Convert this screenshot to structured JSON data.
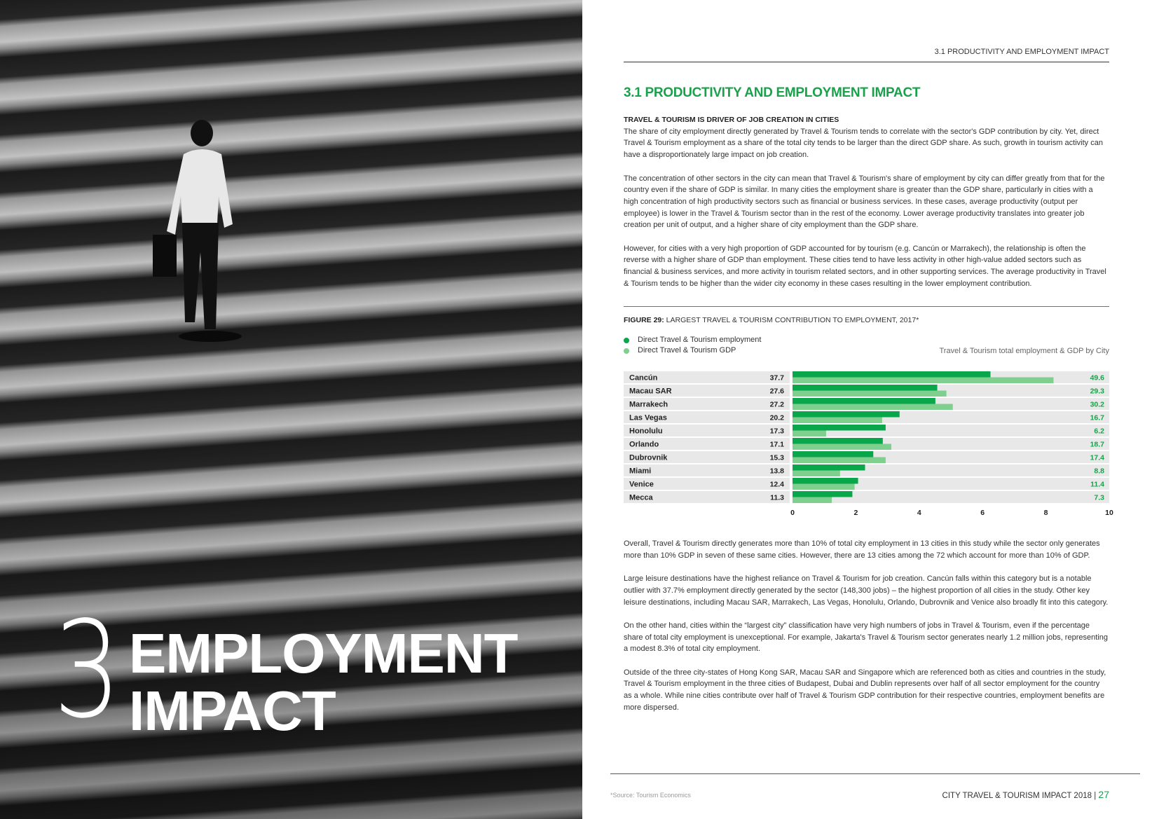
{
  "left_page": {
    "chapter_number": "3",
    "chapter_title_line1": "EMPLOYMENT",
    "chapter_title_line2": "IMPACT"
  },
  "header": {
    "running_head": "3.1 PRODUCTIVITY AND EMPLOYMENT IMPACT"
  },
  "section": {
    "title": "3.1 PRODUCTIVITY AND EMPLOYMENT IMPACT",
    "subheading": "TRAVEL & TOURISM IS DRIVER OF JOB CREATION IN CITIES",
    "paragraphs_top": [
      "The share of city employment directly generated by Travel & Tourism tends to correlate with the sector's GDP contribution by city. Yet, direct Travel & Tourism employment as a share of the total city tends to be larger than the direct GDP share. As such, growth in tourism activity can have a disproportionately large impact on job creation.",
      "The concentration of other sectors in the city can mean that Travel & Tourism's share of employment by city can differ greatly from that for the country even if the share of GDP is similar. In many cities the employment share is greater than the GDP share, particularly in cities with a high concentration of high productivity sectors such as financial or business services. In these cases, average productivity (output per employee) is lower in the Travel & Tourism sector than in the rest of the economy. Lower average productivity translates into greater job creation per unit of output, and a higher share of city employment than the GDP share.",
      "However, for cities with a very high proportion of GDP accounted for by tourism (e.g. Cancún or Marrakech), the relationship is often the reverse with a higher share of GDP than employment. These cities tend to have less activity in other high-value added sectors such as financial & business services, and more activity in tourism related sectors, and in other supporting services. The average productivity in Travel & Tourism tends to be higher than the wider city economy in these cases resulting in the lower employment contribution."
    ],
    "paragraphs_bottom": [
      "Overall, Travel & Tourism directly generates more than 10% of total city employment in 13 cities in this study while the sector only generates more than 10% GDP in seven of these same cities. However, there are 13 cities among the 72 which account for more than 10% of GDP.",
      "Large leisure destinations have the highest reliance on Travel & Tourism for job creation. Cancún falls within this category but is a notable outlier with 37.7% employment directly generated by the sector (148,300 jobs) – the highest proportion of all cities in the study. Other key leisure destinations, including Macau SAR, Marrakech, Las Vegas, Honolulu, Orlando, Dubrovnik and Venice also broadly fit into this category.",
      "On the other hand, cities within the “largest city” classification have very high numbers of jobs in Travel & Tourism, even if the percentage share of total city employment is unexceptional. For example, Jakarta's Travel & Tourism sector generates nearly 1.2 million jobs, representing a modest 8.3% of total city employment.",
      "Outside of the three city-states of Hong Kong SAR, Macau SAR and Singapore which are referenced both as cities and countries in the study, Travel & Tourism employment in the three cities of Budapest, Dubai and Dublin represents over half of all sector employment for the country as a whole.  While nine cities contribute over half of Travel & Tourism GDP contribution for their respective countries, employment benefits are more dispersed."
    ]
  },
  "figure": {
    "label": "FIGURE 29:",
    "title": " LARGEST TRAVEL & TOURISM CONTRIBUTION TO EMPLOYMENT, 2017*"
  },
  "chart_data": {
    "type": "bar",
    "orientation": "horizontal",
    "title": "Travel & Tourism total employment & GDP by City",
    "legend_placement": "top-left",
    "categories": [
      "Cancún",
      "Macau SAR",
      "Marrakech",
      "Las Vegas",
      "Honolulu",
      "Orlando",
      "Dubrovnik",
      "Miami",
      "Venice",
      "Mecca"
    ],
    "left_labels": [
      "37.7",
      "27.6",
      "27.2",
      "20.2",
      "17.3",
      "17.1",
      "15.3",
      "13.8",
      "12.4",
      "11.3"
    ],
    "right_labels": [
      "49.6",
      "29.3",
      "30.2",
      "16.7",
      "6.2",
      "18.7",
      "17.4",
      "8.8",
      "11.4",
      "7.3"
    ],
    "series": [
      {
        "name": "Direct Travel & Tourism employment",
        "color": "#0aa64b",
        "values": [
          6.25,
          4.57,
          4.51,
          3.38,
          2.94,
          2.85,
          2.55,
          2.29,
          2.07,
          1.89
        ]
      },
      {
        "name": "Direct Travel & Tourism GDP",
        "color": "#7fd08e",
        "values": [
          8.24,
          4.86,
          5.06,
          2.83,
          1.06,
          3.12,
          2.94,
          1.5,
          1.96,
          1.24
        ]
      }
    ],
    "xlim": [
      0,
      10
    ],
    "xticks": [
      "0",
      "2",
      "4",
      "6",
      "8",
      "10"
    ],
    "grid": false
  },
  "footer": {
    "source": "*Source: Tourism Economics",
    "publication": "CITY TRAVEL & TOURISM IMPACT 2018",
    "separator": "|",
    "page": "27"
  }
}
